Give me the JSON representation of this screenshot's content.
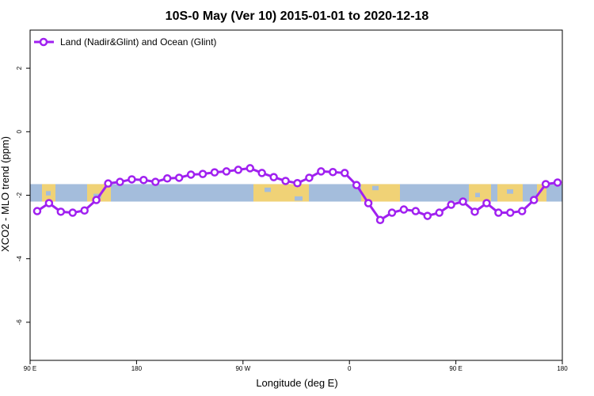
{
  "chart_data": {
    "type": "line",
    "title": "10S-0 May (Ver 10)   2015-01-01 to 2020-12-18",
    "xlabel": "Longitude (deg E)",
    "ylabel": "XCO2 - MLO trend (ppm)",
    "xlim": [
      90,
      540
    ],
    "ylim": [
      -7.2,
      3.2
    ],
    "x_ticks": [
      {
        "value": 90,
        "label": "90 E"
      },
      {
        "value": 180,
        "label": "180"
      },
      {
        "value": 270,
        "label": "90 W"
      },
      {
        "value": 360,
        "label": "0"
      },
      {
        "value": 450,
        "label": "90 E"
      },
      {
        "value": 540,
        "label": "180"
      }
    ],
    "y_ticks": [
      {
        "value": 2,
        "label": "2"
      },
      {
        "value": 0,
        "label": "0"
      },
      {
        "value": -2,
        "label": "-2"
      },
      {
        "value": -4,
        "label": "-4"
      },
      {
        "value": -6,
        "label": "-6"
      }
    ],
    "legend": {
      "position": "top-left"
    },
    "map_band": {
      "y_range": [
        -2.2,
        -1.65
      ],
      "ocean_color": "#a4bddc",
      "land_color": "#f8d46a"
    },
    "series": [
      {
        "name": "Land (Nadir&Glint) and Ocean (Glint)",
        "color": "#a020f0",
        "x": [
          96,
          106,
          116,
          126,
          136,
          146,
          156,
          166,
          176,
          186,
          196,
          206,
          216,
          226,
          236,
          246,
          256,
          266,
          276,
          286,
          296,
          306,
          316,
          326,
          336,
          346,
          356,
          366,
          376,
          386,
          396,
          406,
          416,
          426,
          436,
          446,
          456,
          466,
          476,
          486,
          496,
          506,
          516,
          526,
          536
        ],
        "y": [
          -2.5,
          -2.25,
          -2.52,
          -2.55,
          -2.48,
          -2.15,
          -1.63,
          -1.58,
          -1.5,
          -1.52,
          -1.58,
          -1.47,
          -1.45,
          -1.35,
          -1.33,
          -1.28,
          -1.25,
          -1.2,
          -1.15,
          -1.3,
          -1.43,
          -1.55,
          -1.62,
          -1.45,
          -1.25,
          -1.27,
          -1.3,
          -1.68,
          -2.25,
          -2.78,
          -2.55,
          -2.45,
          -2.5,
          -2.65,
          -2.55,
          -2.3,
          -2.2,
          -2.52,
          -2.25,
          -2.55,
          -2.55,
          -2.5,
          -2.15,
          -1.65,
          -1.6
        ]
      }
    ]
  }
}
